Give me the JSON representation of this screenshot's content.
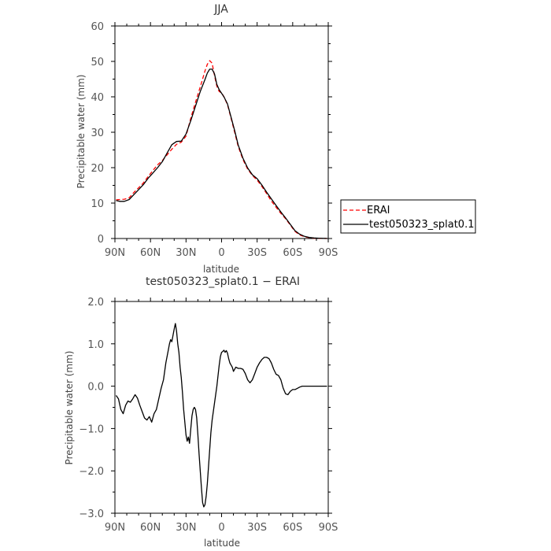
{
  "chart_data": [
    {
      "type": "line",
      "title": "JJA",
      "xlabel": "latitude",
      "ylabel": "Precipitable water (mm)",
      "xlim": [
        90,
        -90
      ],
      "ylim": [
        0,
        60
      ],
      "xticks": [
        90,
        60,
        30,
        0,
        -30,
        -60,
        -90
      ],
      "xtick_labels": [
        "90N",
        "60N",
        "30N",
        "0",
        "30S",
        "60S",
        "90S"
      ],
      "yticks": [
        0,
        10,
        20,
        30,
        40,
        50,
        60
      ],
      "ytick_labels": [
        "0",
        "10",
        "20",
        "30",
        "40",
        "50",
        "60"
      ],
      "legend": "right",
      "series": [
        {
          "name": "ERAI",
          "color": "#ff0000",
          "style": "dashed",
          "x": [
            89,
            86,
            82,
            78,
            74,
            70,
            66,
            62,
            58,
            54,
            50,
            46,
            42,
            38,
            34,
            30,
            26,
            22,
            18,
            14,
            12,
            10,
            8,
            6,
            4,
            2,
            0,
            -2,
            -5,
            -8,
            -11,
            -14,
            -18,
            -22,
            -26,
            -30,
            -34,
            -38,
            -42,
            -46,
            -50,
            -54,
            -58,
            -62,
            -66,
            -70,
            -74,
            -78,
            -82,
            -86,
            -89
          ],
          "y": [
            10.9,
            11.0,
            11.1,
            11.5,
            13.0,
            14.3,
            15.7,
            17.5,
            19.2,
            20.8,
            22.0,
            23.6,
            25.2,
            26.6,
            27.2,
            28.9,
            34.0,
            38.5,
            42.8,
            47.3,
            49.2,
            50.2,
            49.5,
            46.0,
            43.0,
            41.5,
            41.1,
            40.0,
            37.8,
            34.0,
            30.0,
            26.0,
            22.3,
            19.6,
            17.8,
            16.5,
            14.7,
            12.7,
            10.6,
            8.8,
            7.1,
            5.6,
            3.8,
            2.0,
            1.0,
            0.5,
            0.25,
            0.1,
            0.05,
            0.02,
            0.01
          ]
        },
        {
          "name": "test050323_splat0.1",
          "color": "#000000",
          "style": "solid",
          "x": [
            89,
            86,
            82,
            78,
            74,
            70,
            66,
            62,
            58,
            54,
            50,
            46,
            42,
            38,
            34,
            30,
            26,
            22,
            18,
            14,
            12,
            10,
            8,
            6,
            4,
            2,
            0,
            -2,
            -5,
            -8,
            -11,
            -14,
            -18,
            -22,
            -26,
            -30,
            -34,
            -38,
            -42,
            -46,
            -50,
            -54,
            -58,
            -62,
            -66,
            -70,
            -74,
            -78,
            -82,
            -86,
            -89
          ],
          "y": [
            10.7,
            10.5,
            10.5,
            11.0,
            12.4,
            13.8,
            15.2,
            17.0,
            18.5,
            20.0,
            21.7,
            24.1,
            26.5,
            27.4,
            27.5,
            29.5,
            33.3,
            37.4,
            41.5,
            44.9,
            46.7,
            47.8,
            47.8,
            46.5,
            43.5,
            42.0,
            41.0,
            40.0,
            38.0,
            34.3,
            30.5,
            26.4,
            22.7,
            19.9,
            18.0,
            16.9,
            15.1,
            13.1,
            11.2,
            9.3,
            7.5,
            5.8,
            4.0,
            2.2,
            1.2,
            0.6,
            0.3,
            0.15,
            0.08,
            0.04,
            0.02
          ]
        }
      ]
    },
    {
      "type": "line",
      "title": "test050323_splat0.1 − ERAI",
      "xlabel": "latitude",
      "ylabel": "Precipitable water (mm)",
      "xlim": [
        90,
        -90
      ],
      "ylim": [
        -3.0,
        2.0
      ],
      "xticks": [
        90,
        60,
        30,
        0,
        -30,
        -60,
        -90
      ],
      "xtick_labels": [
        "90N",
        "60N",
        "30N",
        "0",
        "30S",
        "60S",
        "90S"
      ],
      "yticks": [
        -3,
        -2,
        -1,
        0,
        1,
        2
      ],
      "ytick_labels": [
        "−3.0",
        "−2.0",
        "−1.0",
        "0.0",
        "1.0",
        "2.0"
      ],
      "series": [
        {
          "name": "",
          "color": "#000000",
          "style": "solid",
          "x": [
            89,
            87,
            85,
            83,
            81,
            79,
            77,
            75,
            73,
            71,
            69,
            67,
            65,
            63,
            61,
            59,
            57,
            55,
            53,
            51,
            49,
            47,
            45,
            44,
            43,
            42,
            41,
            40,
            39,
            38,
            37,
            36,
            35,
            34,
            33,
            32,
            31,
            30,
            29,
            28,
            27,
            26,
            25,
            24,
            23,
            22,
            21,
            20,
            19,
            18,
            17,
            16,
            15,
            14,
            13,
            12,
            11,
            10,
            9,
            8,
            7,
            6,
            5,
            4,
            3,
            2,
            1,
            0,
            -1,
            -2,
            -3,
            -4,
            -5,
            -6,
            -7,
            -8,
            -9,
            -10,
            -12,
            -14,
            -16,
            -18,
            -20,
            -22,
            -24,
            -26,
            -28,
            -30,
            -32,
            -34,
            -36,
            -38,
            -40,
            -42,
            -44,
            -46,
            -48,
            -50,
            -52,
            -54,
            -56,
            -58,
            -60,
            -62,
            -64,
            -66,
            -68,
            -70,
            -72,
            -74,
            -76,
            -78,
            -80,
            -82,
            -84,
            -86,
            -88,
            -89
          ],
          "y": [
            -0.22,
            -0.3,
            -0.55,
            -0.65,
            -0.45,
            -0.35,
            -0.38,
            -0.3,
            -0.2,
            -0.28,
            -0.45,
            -0.6,
            -0.75,
            -0.8,
            -0.72,
            -0.85,
            -0.65,
            -0.55,
            -0.3,
            -0.05,
            0.15,
            0.55,
            0.85,
            1.0,
            1.1,
            1.05,
            1.2,
            1.35,
            1.48,
            1.3,
            1.0,
            0.8,
            0.45,
            0.2,
            -0.15,
            -0.55,
            -0.85,
            -1.15,
            -1.3,
            -1.2,
            -1.35,
            -1.0,
            -0.7,
            -0.55,
            -0.5,
            -0.55,
            -0.75,
            -1.15,
            -1.6,
            -2.0,
            -2.4,
            -2.75,
            -2.85,
            -2.8,
            -2.6,
            -2.3,
            -1.9,
            -1.5,
            -1.1,
            -0.8,
            -0.6,
            -0.4,
            -0.2,
            0.0,
            0.25,
            0.5,
            0.7,
            0.8,
            0.82,
            0.85,
            0.8,
            0.84,
            0.78,
            0.65,
            0.55,
            0.5,
            0.45,
            0.35,
            0.45,
            0.42,
            0.42,
            0.4,
            0.3,
            0.15,
            0.08,
            0.15,
            0.3,
            0.45,
            0.55,
            0.63,
            0.68,
            0.68,
            0.65,
            0.55,
            0.4,
            0.28,
            0.25,
            0.15,
            -0.05,
            -0.18,
            -0.2,
            -0.12,
            -0.08,
            -0.08,
            -0.05,
            -0.02,
            0.0,
            0.0,
            0.0,
            0.0,
            0.0,
            0.0,
            0.0,
            0.0,
            0.0,
            0.0,
            0.0,
            0.0
          ]
        }
      ]
    }
  ]
}
